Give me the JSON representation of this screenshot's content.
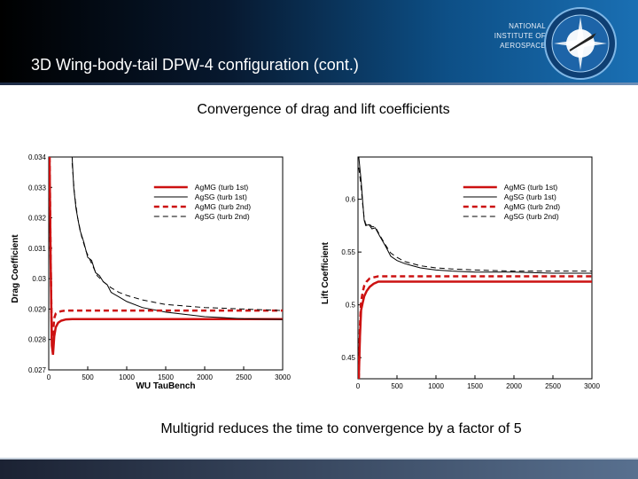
{
  "slide": {
    "title": "3D Wing-body-tail DPW-4 configuration (cont.)",
    "subtitle": "Convergence of drag and lift coefficients",
    "caption": "Multigrid reduces the time to convergence by a factor of 5"
  },
  "logo": {
    "line1": "NATIONAL",
    "line2": "INSTITUTE OF",
    "line3": "AEROSPACE",
    "icon": "compass-star-icon"
  },
  "colors": {
    "red": "#cc1111",
    "black": "#000000",
    "header_dark": "#000000",
    "header_blue": "#1a6fb3"
  },
  "chart_data": [
    {
      "type": "line",
      "xlabel": "WU TauBench",
      "ylabel": "Drag Coefficient",
      "xlim": [
        0,
        3000
      ],
      "ylim": [
        0.027,
        0.034
      ],
      "xticks": [
        "0",
        "500",
        "1000",
        "1500",
        "2000",
        "2500",
        "3000"
      ],
      "yticks": [
        "0.027",
        "0.028",
        "0.029",
        "0.03",
        "0.031",
        "0.032",
        "0.033",
        "0.034"
      ],
      "legend_position": "top-right",
      "series": [
        {
          "name": "AgMG (turb 1st)",
          "color": "red",
          "dash": "solid",
          "width": 2.5,
          "x": [
            10,
            25,
            40,
            55,
            70,
            90,
            120,
            160,
            220,
            300,
            400,
            600,
            1000,
            2000,
            3000
          ],
          "y": [
            0.034,
            0.0305,
            0.0278,
            0.0275,
            0.0281,
            0.0284,
            0.02855,
            0.02862,
            0.02866,
            0.02867,
            0.02867,
            0.02867,
            0.02867,
            0.02867,
            0.02867
          ]
        },
        {
          "name": "AgSG (turb 1st)",
          "color": "black",
          "dash": "solid",
          "width": 1,
          "x": [
            300,
            320,
            350,
            400,
            450,
            500,
            550,
            600,
            650,
            700,
            750,
            800,
            900,
            1000,
            1200,
            1500,
            2000,
            2500,
            3000
          ],
          "y": [
            0.034,
            0.033,
            0.0323,
            0.0316,
            0.0312,
            0.0307,
            0.0306,
            0.0302,
            0.0301,
            0.0299,
            0.0298,
            0.02955,
            0.0294,
            0.02925,
            0.02905,
            0.0289,
            0.02875,
            0.02868,
            0.02866
          ]
        },
        {
          "name": "AgMG (turb 2nd)",
          "color": "red",
          "dash": "dashed",
          "width": 2.5,
          "x": [
            10,
            25,
            40,
            55,
            70,
            90,
            120,
            160,
            220,
            300,
            500,
            1000,
            2000,
            3000
          ],
          "y": [
            0.034,
            0.0306,
            0.028,
            0.0282,
            0.0287,
            0.02885,
            0.0289,
            0.02893,
            0.02895,
            0.02895,
            0.02895,
            0.02895,
            0.02895,
            0.02895
          ]
        },
        {
          "name": "AgSG (turb 2nd)",
          "color": "black",
          "dash": "dashed",
          "width": 1,
          "x": [
            300,
            330,
            370,
            420,
            480,
            550,
            620,
            700,
            800,
            900,
            1000,
            1200,
            1500,
            2000,
            2500,
            3000
          ],
          "y": [
            0.0338,
            0.0328,
            0.032,
            0.0314,
            0.0309,
            0.0305,
            0.0301,
            0.0299,
            0.0297,
            0.02955,
            0.02945,
            0.0293,
            0.02915,
            0.02905,
            0.029,
            0.02895
          ]
        }
      ]
    },
    {
      "type": "line",
      "xlabel": "WU TauBench",
      "ylabel": "Lift Coefficient",
      "xlim": [
        0,
        3000
      ],
      "ylim": [
        0.43,
        0.64
      ],
      "xticks": [
        "0",
        "500",
        "1000",
        "1500",
        "2000",
        "2500",
        "3000"
      ],
      "yticks": [
        "0.45",
        "0.5",
        "0.55",
        "0.6"
      ],
      "legend_position": "top-right",
      "series": [
        {
          "name": "AgMG (turb 1st)",
          "color": "red",
          "dash": "solid",
          "width": 2.5,
          "x": [
            10,
            25,
            40,
            60,
            80,
            110,
            150,
            200,
            260,
            350,
            500,
            1000,
            2000,
            3000
          ],
          "y": [
            0.43,
            0.47,
            0.495,
            0.502,
            0.508,
            0.513,
            0.517,
            0.52,
            0.522,
            0.522,
            0.522,
            0.522,
            0.522,
            0.522
          ]
        },
        {
          "name": "AgSG (turb 1st)",
          "color": "black",
          "dash": "solid",
          "width": 1,
          "x": [
            10,
            40,
            60,
            80,
            100,
            140,
            180,
            220,
            280,
            350,
            420,
            500,
            600,
            700,
            800,
            900,
            1000,
            1200,
            1500,
            2000,
            2500,
            3000
          ],
          "y": [
            0.64,
            0.618,
            0.598,
            0.58,
            0.575,
            0.576,
            0.572,
            0.573,
            0.565,
            0.556,
            0.546,
            0.542,
            0.539,
            0.537,
            0.535,
            0.534,
            0.533,
            0.532,
            0.531,
            0.531,
            0.53,
            0.53
          ]
        },
        {
          "name": "AgMG (turb 2nd)",
          "color": "red",
          "dash": "dashed",
          "width": 2.5,
          "x": [
            10,
            25,
            40,
            60,
            80,
            110,
            150,
            200,
            260,
            350,
            500,
            1000,
            2000,
            3000
          ],
          "y": [
            0.43,
            0.48,
            0.503,
            0.512,
            0.518,
            0.522,
            0.525,
            0.526,
            0.527,
            0.527,
            0.527,
            0.527,
            0.527,
            0.527
          ]
        },
        {
          "name": "AgSG (turb 2nd)",
          "color": "black",
          "dash": "dashed",
          "width": 1,
          "x": [
            10,
            40,
            60,
            80,
            100,
            140,
            180,
            220,
            280,
            350,
            420,
            500,
            600,
            700,
            800,
            1000,
            1200,
            1500,
            2000,
            2500,
            3000
          ],
          "y": [
            0.63,
            0.612,
            0.595,
            0.582,
            0.576,
            0.577,
            0.574,
            0.574,
            0.566,
            0.557,
            0.549,
            0.545,
            0.541,
            0.539,
            0.537,
            0.535,
            0.534,
            0.533,
            0.532,
            0.532,
            0.532
          ]
        }
      ]
    }
  ]
}
